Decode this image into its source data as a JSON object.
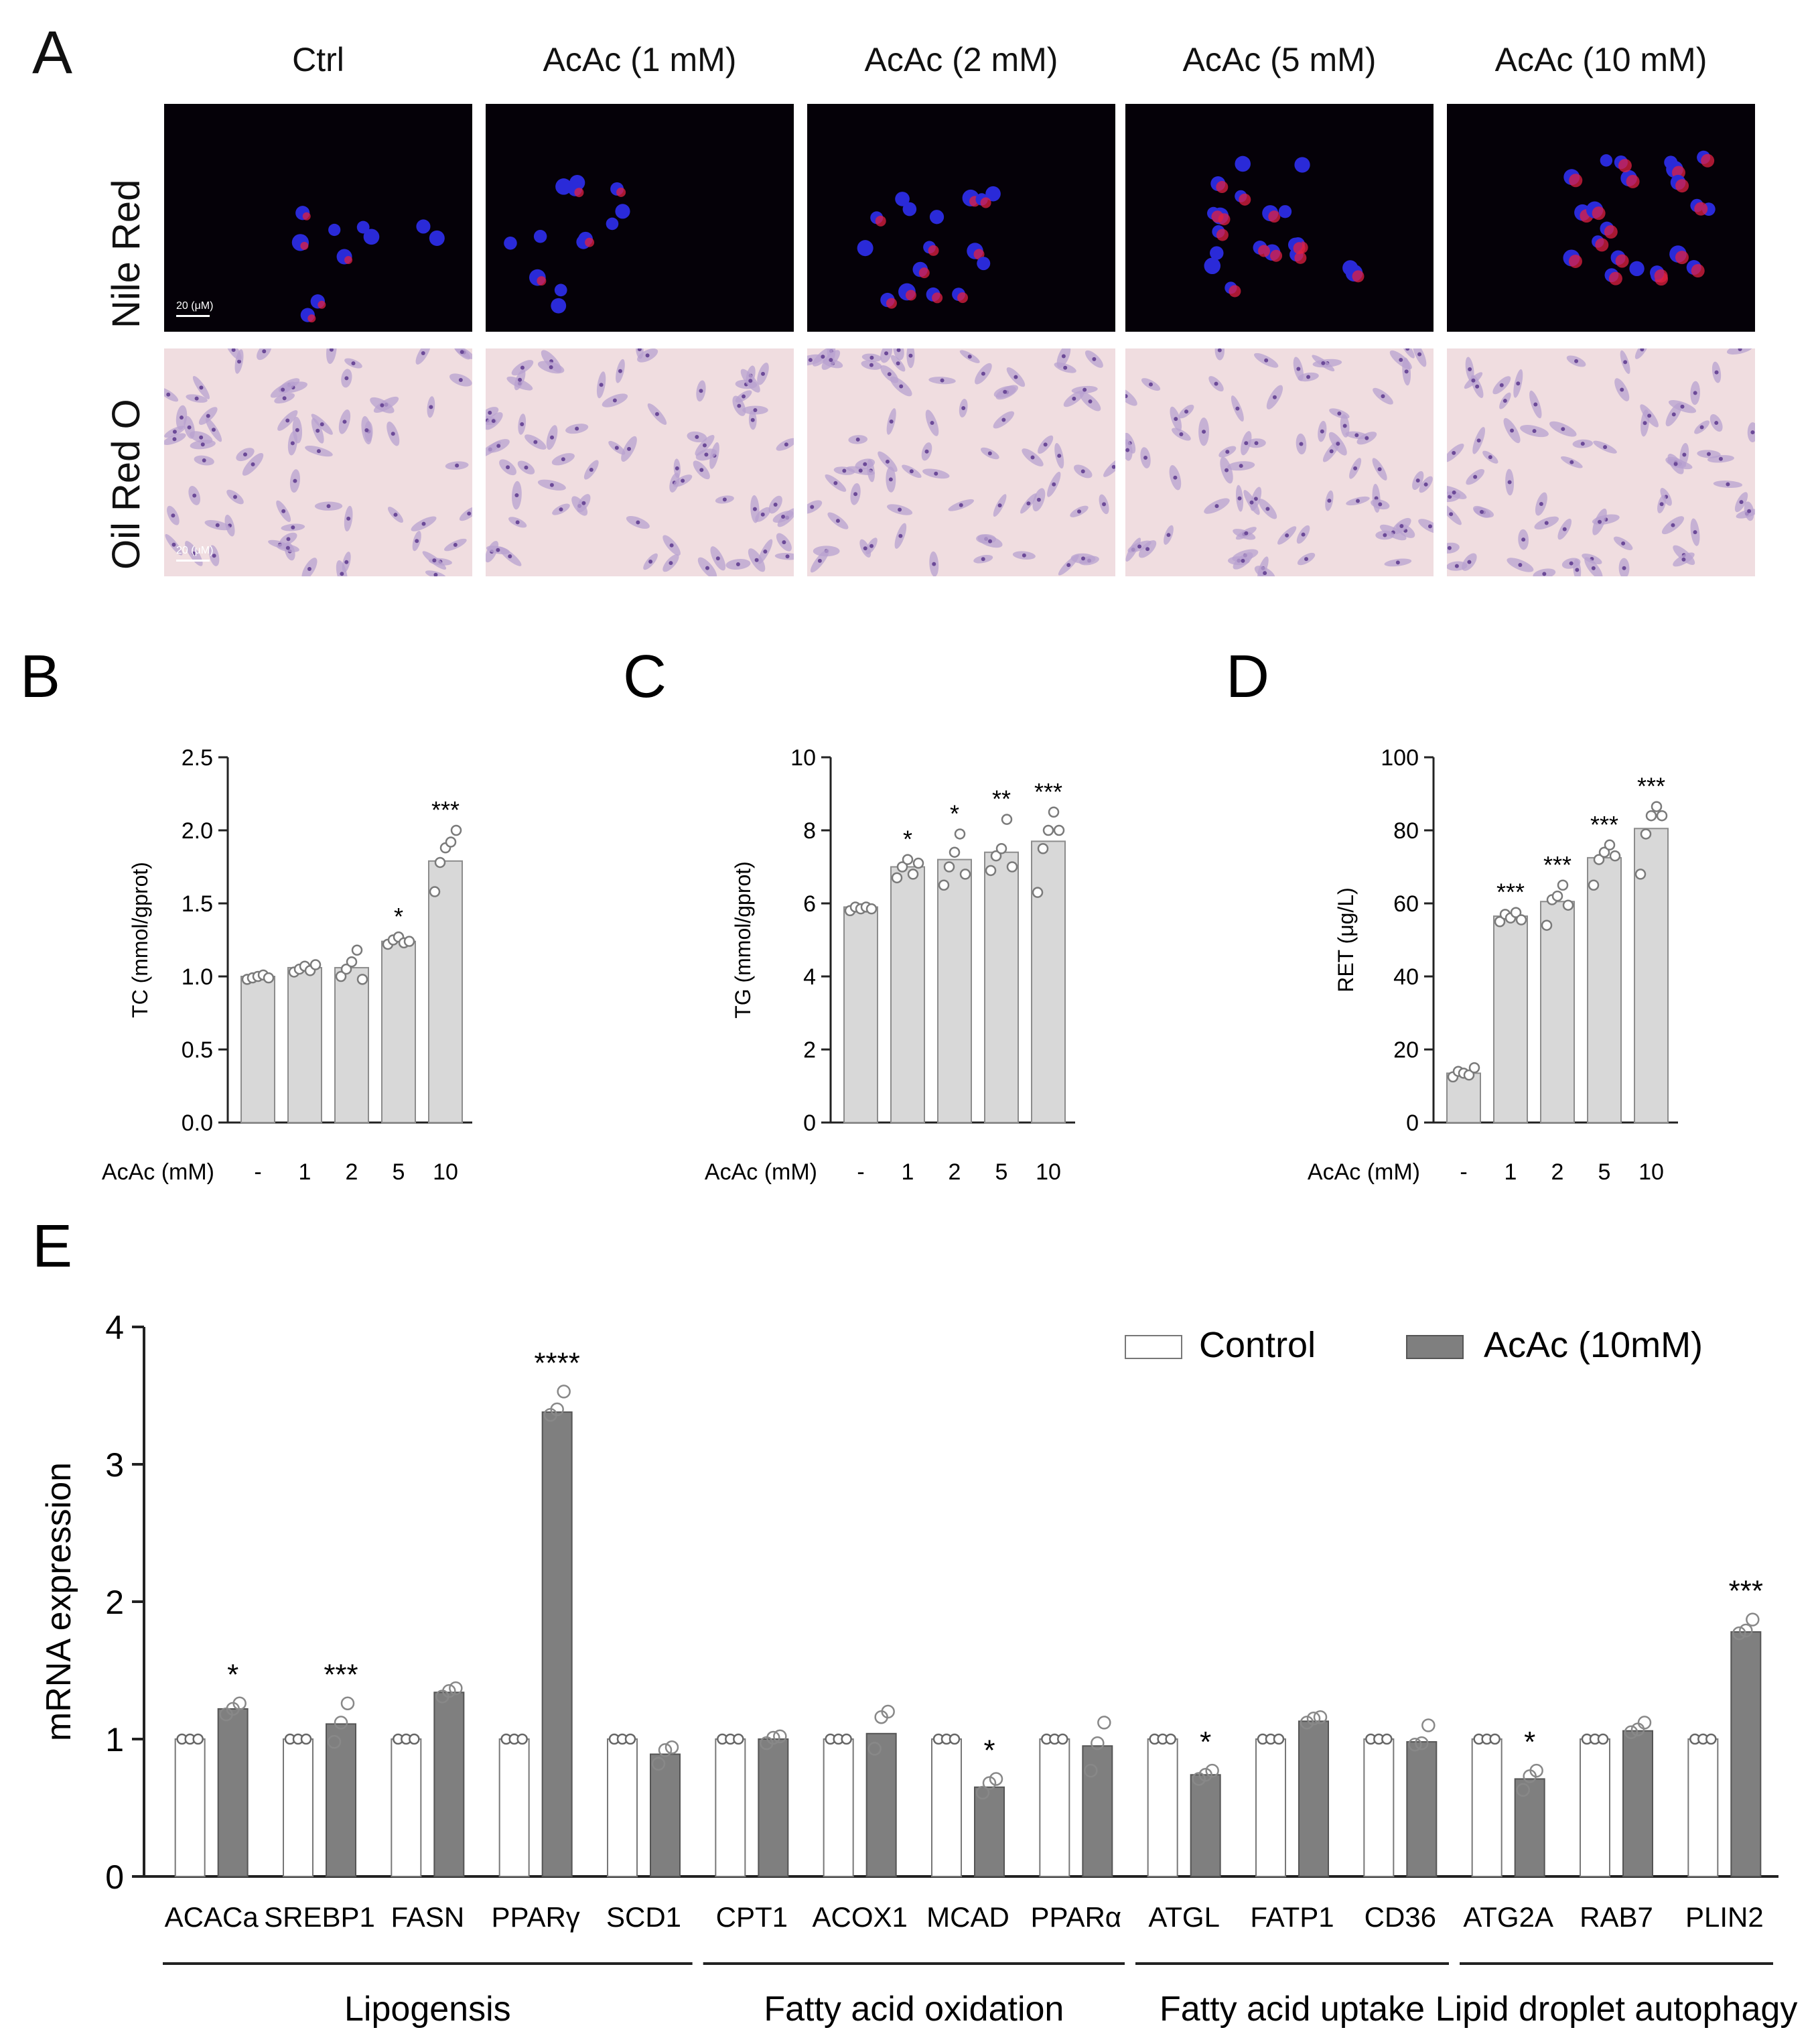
{
  "panelA": {
    "letter": "A",
    "columns": [
      "Ctrl",
      "AcAc (1 mM)",
      "AcAc (2 mM)",
      "AcAc (5 mM)",
      "AcAc (10 mM)"
    ],
    "rows": [
      "Nile Red",
      "Oil Red O"
    ],
    "scale_label": "20 (μM)"
  },
  "chart_data": [
    {
      "type": "bar",
      "letter": "B",
      "ylabel": "TC (mmol/gprot)",
      "xlabel": "AcAc (mM)",
      "categories": [
        "-",
        "1",
        "2",
        "5",
        "10"
      ],
      "values": [
        1.0,
        1.06,
        1.06,
        1.24,
        1.79
      ],
      "points": [
        [
          0.98,
          0.99,
          1.0,
          1.01,
          0.99
        ],
        [
          1.03,
          1.05,
          1.07,
          1.04,
          1.08
        ],
        [
          1.0,
          1.05,
          1.1,
          1.18,
          0.98
        ],
        [
          1.22,
          1.25,
          1.27,
          1.23,
          1.24
        ],
        [
          1.58,
          1.78,
          1.88,
          1.92,
          2.0
        ]
      ],
      "significance": [
        "",
        "",
        "",
        "*",
        "***"
      ],
      "ylim": [
        0,
        2.5
      ],
      "yticks": [
        "0.0",
        "0.5",
        "1.0",
        "1.5",
        "2.0",
        "2.5"
      ]
    },
    {
      "type": "bar",
      "letter": "C",
      "ylabel": "TG (mmol/gprot)",
      "xlabel": "AcAc (mM)",
      "categories": [
        "-",
        "1",
        "2",
        "5",
        "10"
      ],
      "values": [
        5.9,
        7.0,
        7.2,
        7.4,
        7.7
      ],
      "points": [
        [
          5.8,
          5.9,
          5.85,
          5.9,
          5.85
        ],
        [
          6.7,
          7.0,
          7.2,
          6.8,
          7.1
        ],
        [
          6.5,
          7.0,
          7.4,
          7.9,
          6.8
        ],
        [
          6.9,
          7.3,
          7.5,
          8.3,
          7.0
        ],
        [
          6.3,
          7.5,
          8.0,
          8.5,
          8.0
        ]
      ],
      "significance": [
        "",
        "*",
        "*",
        "**",
        "***"
      ],
      "ylim": [
        0,
        10
      ],
      "yticks": [
        "0",
        "2",
        "4",
        "6",
        "8",
        "10"
      ]
    },
    {
      "type": "bar",
      "letter": "D",
      "ylabel": "RET (μg/L)",
      "xlabel": "AcAc (mM)",
      "categories": [
        "-",
        "1",
        "2",
        "5",
        "10"
      ],
      "values": [
        13.5,
        56.5,
        60.5,
        72.5,
        80.5
      ],
      "points": [
        [
          12.5,
          14.0,
          13.5,
          13.0,
          15.0
        ],
        [
          55.0,
          57.0,
          56.0,
          57.5,
          55.5
        ],
        [
          54.0,
          61.0,
          62.0,
          65.0,
          59.5
        ],
        [
          65.0,
          72.0,
          74.0,
          76.0,
          73.0
        ],
        [
          68.0,
          79.0,
          84.0,
          86.5,
          84.0
        ]
      ],
      "significance": [
        "",
        "***",
        "***",
        "***",
        "***"
      ],
      "ylim": [
        0,
        100
      ],
      "yticks": [
        "0",
        "20",
        "40",
        "60",
        "80",
        "100"
      ]
    },
    {
      "type": "bar",
      "letter": "E",
      "ylabel": "mRNA expression",
      "categories": [
        "ACACa",
        "SREBP1",
        "FASN",
        "PPARγ",
        "SCD1",
        "CPT1",
        "ACOX1",
        "MCAD",
        "PPARα",
        "ATGL",
        "FATP1",
        "CD36",
        "ATG2A",
        "RAB7",
        "PLIN2"
      ],
      "series": [
        {
          "name": "Control",
          "values": [
            1,
            1,
            1,
            1,
            1,
            1,
            1,
            1,
            1,
            1,
            1,
            1,
            1,
            1,
            1
          ],
          "color": "#ffffff"
        },
        {
          "name": "AcAc (10mM)",
          "values": [
            1.22,
            1.11,
            1.34,
            3.38,
            0.89,
            1.0,
            1.04,
            0.65,
            0.95,
            0.74,
            1.13,
            0.98,
            0.71,
            1.06,
            1.78
          ],
          "color": "#808080"
        }
      ],
      "points_treated": [
        [
          1.18,
          1.22,
          1.26
        ],
        [
          0.98,
          1.12,
          1.26
        ],
        [
          1.31,
          1.35,
          1.37
        ],
        [
          3.36,
          3.4,
          3.53
        ],
        [
          0.82,
          0.92,
          0.94
        ],
        [
          0.97,
          1.01,
          1.02
        ],
        [
          0.93,
          1.16,
          1.2
        ],
        [
          0.61,
          0.68,
          0.71
        ],
        [
          0.77,
          0.97,
          1.12
        ],
        [
          0.71,
          0.74,
          0.77
        ],
        [
          1.12,
          1.15,
          1.16
        ],
        [
          0.96,
          0.97,
          1.1
        ],
        [
          0.63,
          0.73,
          0.77
        ],
        [
          1.05,
          1.07,
          1.12
        ],
        [
          1.77,
          1.79,
          1.87
        ]
      ],
      "significance": [
        "*",
        "***",
        "",
        "****",
        "",
        "",
        "",
        "*",
        "",
        "*",
        "",
        "",
        "*",
        "",
        "***"
      ],
      "ylim": [
        0,
        4
      ],
      "yticks": [
        "0",
        "1",
        "2",
        "3",
        "4"
      ],
      "groups": [
        {
          "label": "Lipogensis",
          "from": 0,
          "to": 4
        },
        {
          "label": "Fatty acid oxidation",
          "from": 5,
          "to": 8
        },
        {
          "label": "Fatty acid uptake",
          "from": 9,
          "to": 11
        },
        {
          "label": "Lipid droplet autophagy",
          "from": 12,
          "to": 14
        }
      ],
      "legend_position": "top-right"
    }
  ]
}
